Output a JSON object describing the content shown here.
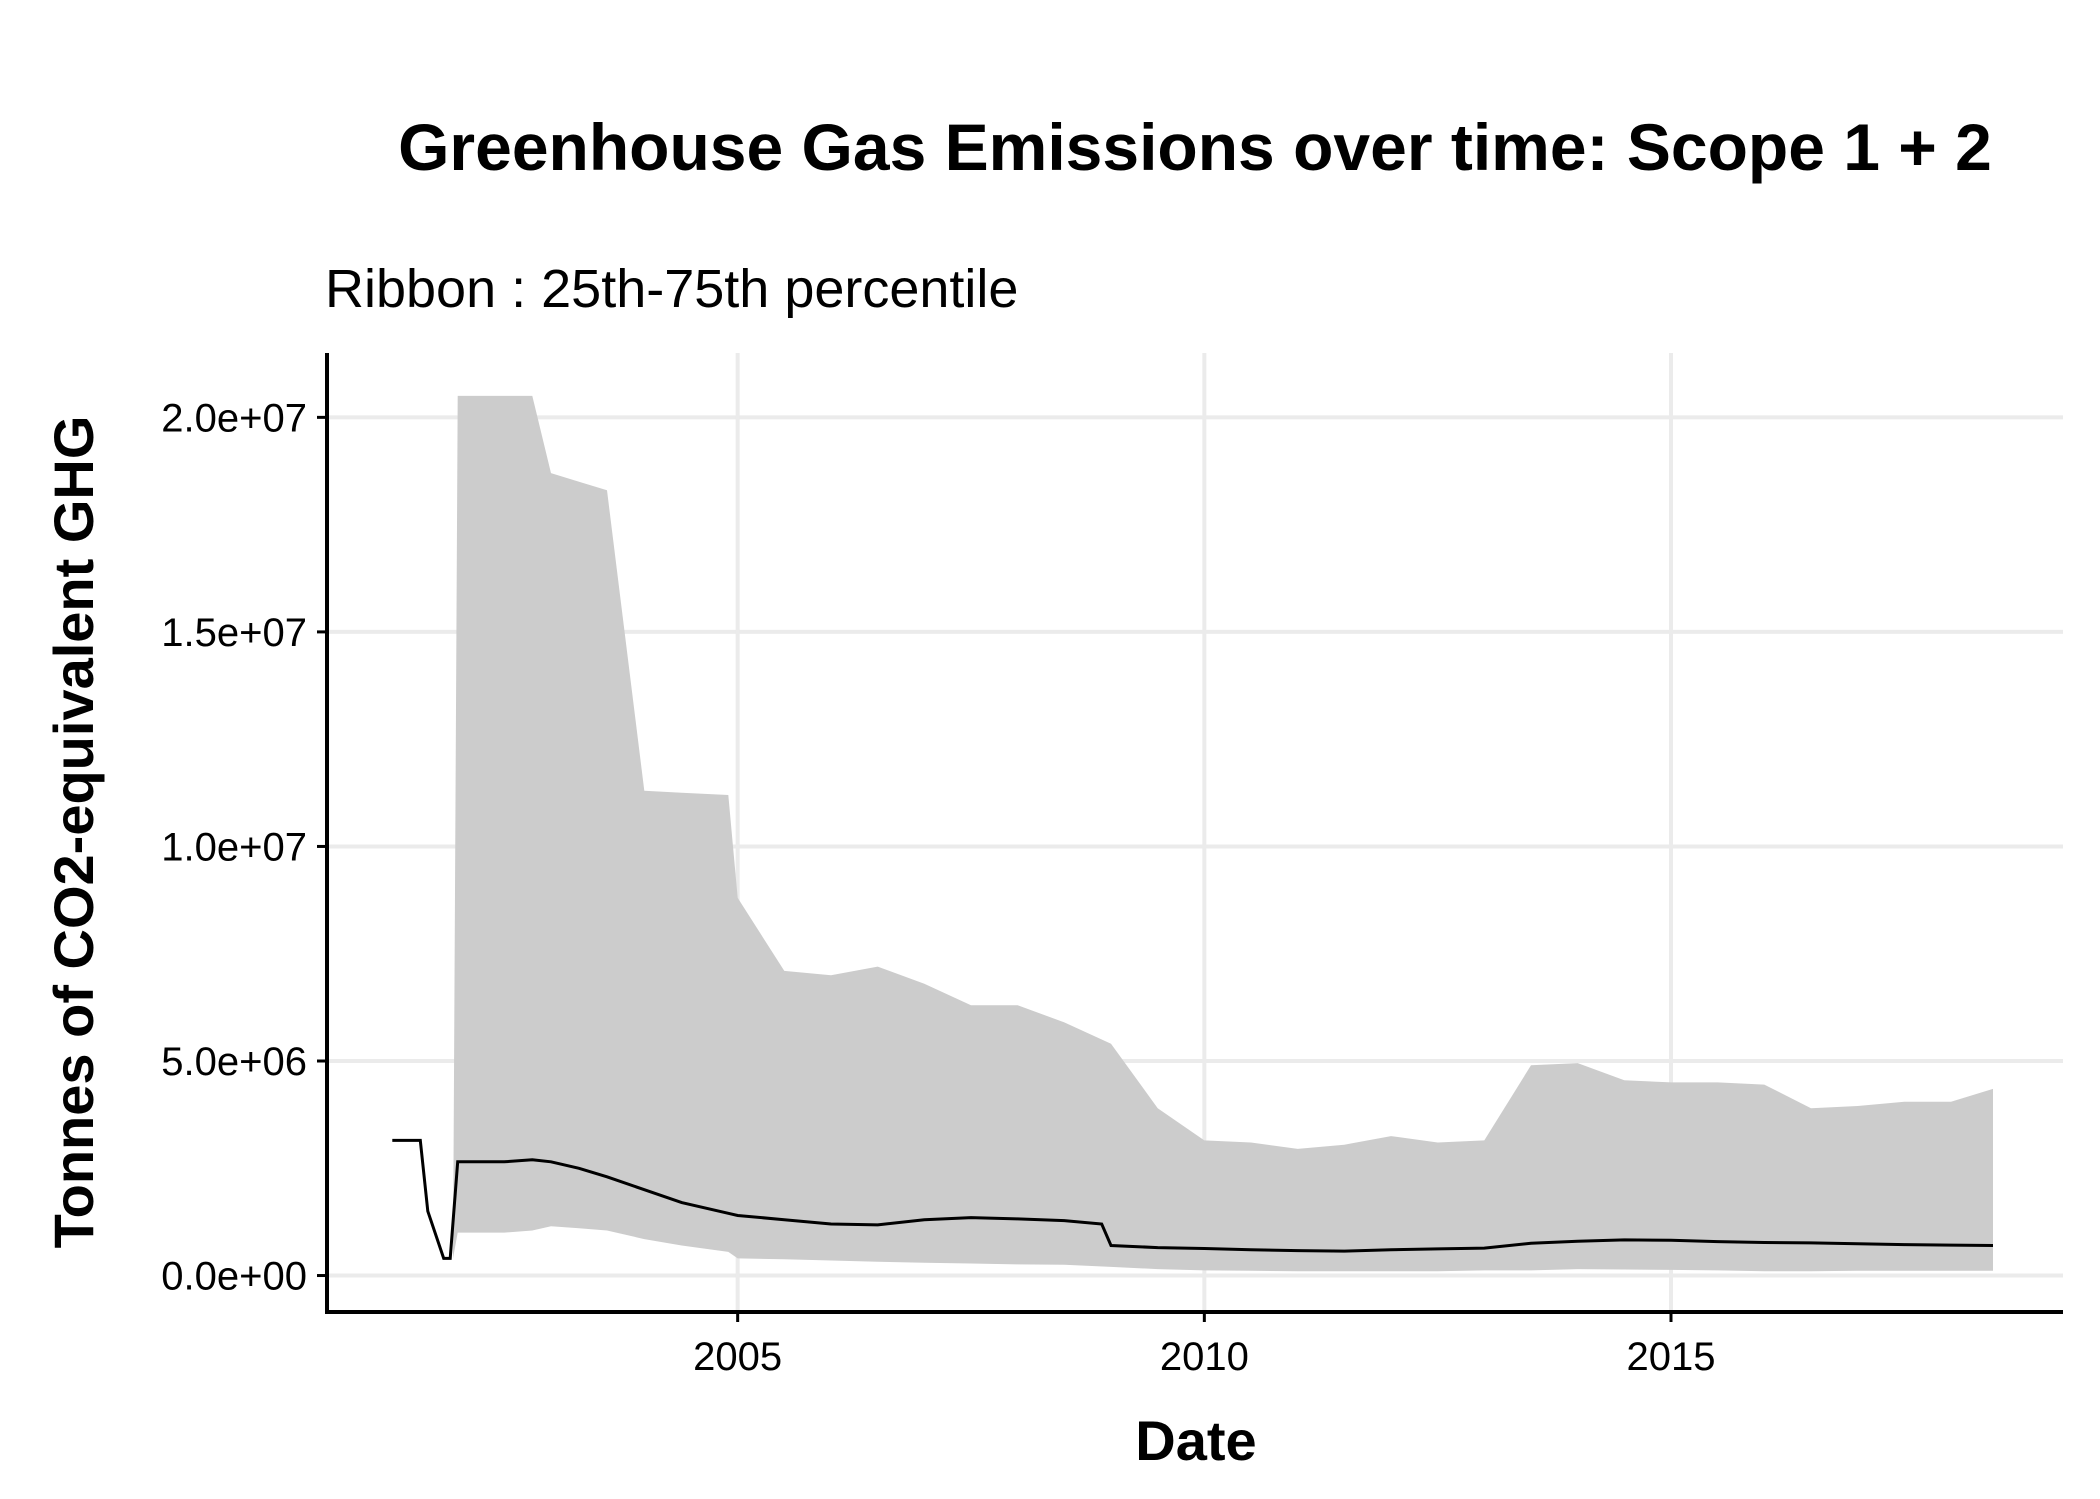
{
  "chart_data": {
    "type": "area",
    "title": "Greenhouse Gas Emissions over time: Scope 1 + 2",
    "subtitle": "Ribbon : 25th-75th percentile",
    "xlabel": "Date",
    "ylabel": "Tonnes of CO2-equivalent GHG",
    "xlim": [
      2000.6,
      2019.2
    ],
    "ylim": [
      -850000,
      21500000
    ],
    "x_ticks": [
      {
        "value": 2005,
        "label": "2005"
      },
      {
        "value": 2010,
        "label": "2010"
      },
      {
        "value": 2015,
        "label": "2015"
      }
    ],
    "y_ticks": [
      {
        "value": 0,
        "label": "0.0e+00"
      },
      {
        "value": 5000000,
        "label": "5.0e+06"
      },
      {
        "value": 10000000,
        "label": "1.0e+07"
      },
      {
        "value": 15000000,
        "label": "1.5e+07"
      },
      {
        "value": 20000000,
        "label": "2.0e+07"
      }
    ],
    "grid": "major",
    "legend": "none",
    "colors": {
      "ribbon": "#cccccc",
      "median": "#000000",
      "grid": "#ebebeb"
    },
    "series": [
      {
        "type": "ribbon",
        "x": [
          2001.7,
          2001.95,
          2002.0,
          2002.5,
          2002.8,
          2003.0,
          2003.3,
          2003.6,
          2004.0,
          2004.4,
          2004.9,
          2005.0,
          2005.5,
          2006.0,
          2006.5,
          2007.0,
          2007.5,
          2008.0,
          2008.5,
          2009.0,
          2009.5,
          2010.0,
          2010.5,
          2011.0,
          2011.5,
          2012.0,
          2012.5,
          2013.0,
          2013.5,
          2014.0,
          2014.5,
          2015.0,
          2015.5,
          2016.0,
          2016.5,
          2017.0,
          2017.5,
          2018.0,
          2018.45
        ],
        "low": [
          400000,
          400000,
          1000000,
          1000000,
          1050000,
          1150000,
          1100000,
          1050000,
          850000,
          700000,
          550000,
          400000,
          380000,
          350000,
          320000,
          300000,
          280000,
          260000,
          250000,
          200000,
          150000,
          120000,
          110000,
          100000,
          100000,
          100000,
          100000,
          120000,
          120000,
          150000,
          140000,
          130000,
          120000,
          100000,
          100000,
          110000,
          110000,
          110000,
          110000
        ],
        "high": [
          400000,
          400000,
          20500000,
          20500000,
          20500000,
          18700000,
          18500000,
          18300000,
          11300000,
          11250000,
          11200000,
          8800000,
          7100000,
          7000000,
          7200000,
          6800000,
          6300000,
          6300000,
          5900000,
          5400000,
          3900000,
          3150000,
          3100000,
          2950000,
          3050000,
          3250000,
          3100000,
          3150000,
          4900000,
          4950000,
          4550000,
          4500000,
          4500000,
          4450000,
          3900000,
          3950000,
          4050000,
          4050000,
          4350000
        ]
      },
      {
        "type": "line",
        "x": [
          2001.3,
          2001.45,
          2001.6,
          2001.68,
          2001.85,
          2001.92,
          2002.0,
          2002.5,
          2002.8,
          2003.0,
          2003.3,
          2003.6,
          2004.0,
          2004.4,
          2004.9,
          2005.0,
          2005.5,
          2006.0,
          2006.5,
          2007.0,
          2007.5,
          2008.0,
          2008.5,
          2008.9,
          2009.0,
          2009.5,
          2010.0,
          2010.5,
          2011.0,
          2011.5,
          2012.0,
          2012.5,
          2013.0,
          2013.5,
          2014.0,
          2014.5,
          2015.0,
          2015.5,
          2016.0,
          2016.5,
          2017.0,
          2017.5,
          2018.0,
          2018.45
        ],
        "y": [
          3150000,
          3150000,
          3150000,
          1500000,
          400000,
          400000,
          2650000,
          2650000,
          2700000,
          2650000,
          2500000,
          2300000,
          2000000,
          1700000,
          1450000,
          1400000,
          1300000,
          1200000,
          1180000,
          1300000,
          1350000,
          1320000,
          1280000,
          1200000,
          700000,
          650000,
          630000,
          600000,
          580000,
          570000,
          600000,
          620000,
          640000,
          750000,
          800000,
          830000,
          820000,
          790000,
          770000,
          760000,
          740000,
          720000,
          710000,
          700000
        ]
      }
    ]
  }
}
